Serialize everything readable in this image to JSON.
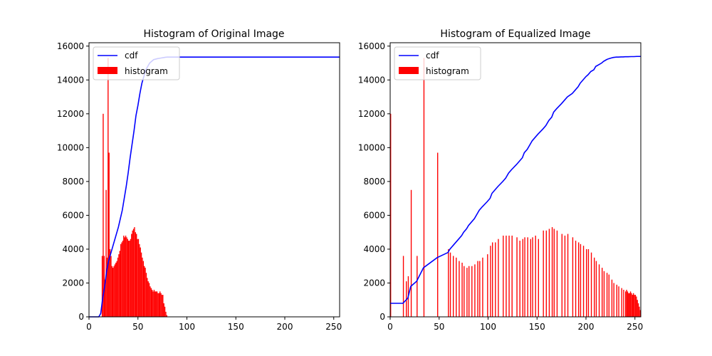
{
  "chart_data": [
    {
      "type": "bar",
      "title": "Histogram of Original Image",
      "xlabel": "",
      "ylabel": "",
      "xlim": [
        0,
        256
      ],
      "ylim": [
        0,
        16200
      ],
      "xticks": [
        "0",
        "50",
        "100",
        "150",
        "200",
        "250"
      ],
      "yticks": [
        "0",
        "2000",
        "4000",
        "6000",
        "8000",
        "10000",
        "12000",
        "14000",
        "16000"
      ],
      "grid": false,
      "legend": {
        "position": "top-left",
        "entries": [
          "cdf",
          "histogram"
        ]
      },
      "colors": {
        "cdf": "#0000ff",
        "histogram": "#ff0000"
      },
      "series": [
        {
          "name": "histogram",
          "x": [
            13,
            14,
            15,
            16,
            17,
            18,
            19,
            20,
            21,
            22,
            23,
            24,
            25,
            26,
            27,
            28,
            29,
            30,
            31,
            32,
            33,
            34,
            35,
            36,
            37,
            38,
            39,
            40,
            41,
            42,
            43,
            44,
            45,
            46,
            47,
            48,
            49,
            50,
            51,
            52,
            53,
            54,
            55,
            56,
            57,
            58,
            59,
            60,
            61,
            62,
            63,
            64,
            65,
            66,
            67,
            68,
            69,
            70,
            71,
            72,
            73,
            74,
            75,
            76,
            77,
            78,
            79
          ],
          "values": [
            3600,
            12000,
            3600,
            2200,
            7500,
            3500,
            15300,
            9700,
            4000,
            3600,
            3000,
            2900,
            3000,
            3100,
            3200,
            3300,
            3500,
            3700,
            3900,
            4300,
            4400,
            4500,
            4800,
            4700,
            4800,
            4700,
            4600,
            4500,
            4500,
            4600,
            4900,
            5100,
            5200,
            5300,
            5000,
            4900,
            4600,
            4600,
            4300,
            4100,
            3800,
            3500,
            3300,
            3000,
            2900,
            2600,
            2300,
            2100,
            2000,
            1800,
            1700,
            1600,
            1500,
            1600,
            1500,
            1500,
            1500,
            1400,
            1400,
            1500,
            1400,
            1300,
            1300,
            800,
            600,
            300,
            100
          ]
        },
        {
          "name": "cdf",
          "x": [
            0,
            10,
            12,
            14,
            16,
            18,
            20,
            22,
            24,
            26,
            28,
            30,
            32,
            34,
            36,
            38,
            40,
            42,
            44,
            46,
            48,
            50,
            52,
            54,
            56,
            58,
            60,
            62,
            64,
            66,
            68,
            70,
            72,
            74,
            76,
            78,
            80,
            85,
            256
          ],
          "values": [
            0,
            0,
            200,
            1100,
            1800,
            2700,
            3300,
            3700,
            4100,
            4500,
            4900,
            5300,
            5800,
            6300,
            7000,
            7700,
            8500,
            9400,
            10200,
            11000,
            11900,
            12500,
            13200,
            13800,
            14200,
            14600,
            14800,
            15000,
            15100,
            15200,
            15230,
            15260,
            15280,
            15300,
            15320,
            15340,
            15350,
            15350,
            15350
          ]
        }
      ]
    },
    {
      "type": "bar",
      "title": "Histogram of Equalized Image",
      "xlabel": "",
      "ylabel": "",
      "xlim": [
        0,
        256
      ],
      "ylim": [
        0,
        16200
      ],
      "xticks": [
        "0",
        "50",
        "100",
        "150",
        "200",
        "250"
      ],
      "yticks": [
        "0",
        "2000",
        "4000",
        "6000",
        "8000",
        "10000",
        "12000",
        "14000",
        "16000"
      ],
      "grid": false,
      "legend": {
        "position": "top-left",
        "entries": [
          "cdf",
          "histogram"
        ]
      },
      "colors": {
        "cdf": "#0000ff",
        "histogram": "#ff0000"
      },
      "series": [
        {
          "name": "histogram",
          "x": [
            0,
            13,
            16,
            18,
            21,
            27,
            34,
            48,
            59,
            61,
            64,
            67,
            70,
            73,
            75,
            78,
            80,
            83,
            86,
            89,
            91,
            94,
            99,
            102,
            104,
            107,
            110,
            115,
            118,
            121,
            124,
            129,
            132,
            135,
            137,
            140,
            143,
            145,
            148,
            151,
            156,
            159,
            162,
            165,
            167,
            170,
            175,
            178,
            181,
            186,
            189,
            192,
            194,
            197,
            200,
            202,
            205,
            208,
            210,
            213,
            216,
            218,
            221,
            223,
            226,
            228,
            231,
            233,
            236,
            238,
            240,
            241,
            242,
            243,
            244,
            245,
            246,
            247,
            248,
            249,
            250,
            251,
            252,
            253,
            254,
            255
          ],
          "values": [
            12000,
            3600,
            2100,
            2400,
            7500,
            3600,
            15300,
            9700,
            4000,
            3800,
            3600,
            3500,
            3300,
            3200,
            3000,
            2900,
            3000,
            3000,
            3100,
            3300,
            3300,
            3500,
            3700,
            4200,
            4400,
            4400,
            4600,
            4800,
            4800,
            4800,
            4800,
            4700,
            4500,
            4600,
            4700,
            4700,
            4600,
            4700,
            4800,
            4600,
            5100,
            5100,
            5200,
            5300,
            5200,
            5100,
            4900,
            4800,
            4900,
            4700,
            4500,
            4400,
            4300,
            4200,
            4000,
            4000,
            3800,
            3500,
            3300,
            3100,
            2900,
            2700,
            2600,
            2500,
            2200,
            2000,
            1900,
            1800,
            1700,
            1600,
            1500,
            1600,
            1500,
            1400,
            1400,
            1500,
            1400,
            1300,
            1400,
            1300,
            1300,
            1200,
            1000,
            800,
            600,
            400
          ]
        },
        {
          "name": "cdf",
          "x": [
            0,
            13,
            18,
            21,
            27,
            34,
            48,
            59,
            61,
            64,
            67,
            70,
            73,
            75,
            78,
            80,
            83,
            86,
            89,
            91,
            94,
            99,
            102,
            104,
            107,
            110,
            115,
            118,
            121,
            124,
            129,
            132,
            135,
            137,
            140,
            143,
            145,
            148,
            151,
            156,
            159,
            162,
            165,
            167,
            170,
            175,
            178,
            181,
            186,
            189,
            192,
            194,
            197,
            200,
            202,
            205,
            208,
            210,
            213,
            216,
            218,
            221,
            223,
            226,
            228,
            231,
            233,
            236,
            238,
            240,
            243,
            246,
            249,
            252,
            254,
            256
          ],
          "values": [
            800,
            800,
            1100,
            1800,
            2100,
            2900,
            3500,
            3800,
            4000,
            4200,
            4400,
            4600,
            4800,
            5000,
            5200,
            5400,
            5600,
            5800,
            6100,
            6300,
            6500,
            6800,
            7000,
            7300,
            7500,
            7700,
            8000,
            8200,
            8500,
            8700,
            9000,
            9200,
            9400,
            9700,
            9900,
            10200,
            10400,
            10600,
            10800,
            11100,
            11300,
            11600,
            11800,
            12100,
            12300,
            12600,
            12800,
            13000,
            13200,
            13400,
            13600,
            13800,
            14000,
            14200,
            14300,
            14500,
            14600,
            14800,
            14900,
            15000,
            15100,
            15200,
            15250,
            15300,
            15330,
            15350,
            15350,
            15360,
            15360,
            15370,
            15370,
            15380,
            15380,
            15390,
            15390,
            15390
          ]
        }
      ]
    }
  ]
}
